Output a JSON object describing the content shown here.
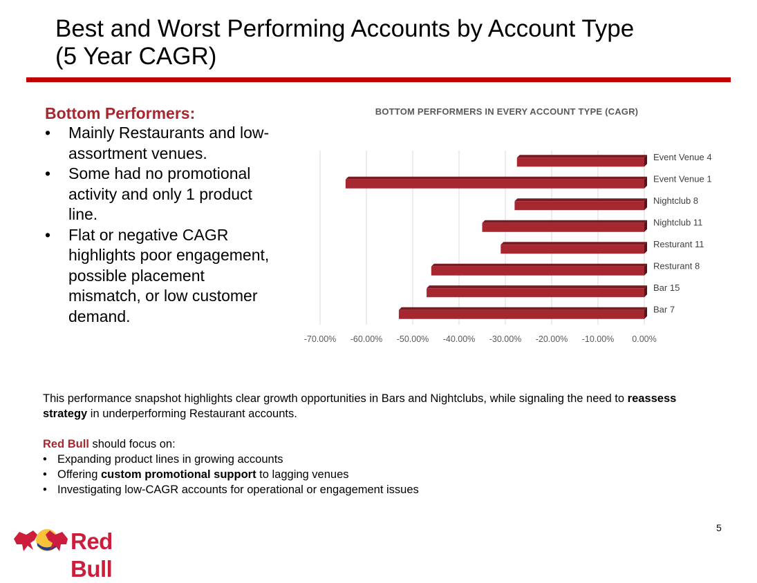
{
  "slide": {
    "title_line1": "Best and Worst Performing Accounts by Account Type",
    "title_line2": "(5 Year CAGR)",
    "page_number": "5"
  },
  "left": {
    "heading": "Bottom Performers:",
    "bullets": [
      "Mainly Restaurants and low-assortment venues.",
      "Some had no promotional activity and only 1 product line.",
      "Flat or negative CAGR highlights poor engagement, possible placement mismatch, or low customer demand."
    ]
  },
  "summary": {
    "p1_pre": "This performance snapshot highlights clear growth opportunities in Bars and Nightclubs, while signaling the need to ",
    "p1_bold": "reassess strategy",
    "p1_post": " in underperforming Restaurant accounts.",
    "focus_brand": "Red Bull",
    "focus_rest": " should focus on:",
    "b1": "Expanding product lines in growing accounts",
    "b2_pre": "Offering ",
    "b2_bold": "custom promotional support",
    "b2_post": " to lagging venues",
    "b3": "Investigating low-CAGR accounts for operational or engagement issues"
  },
  "logo": {
    "text": "Red Bull",
    "icon": "red-bull-logo-icon"
  },
  "colors": {
    "accent": "#c00000",
    "bar": "#a6272f",
    "heading": "#a6272f"
  },
  "chart_data": {
    "type": "bar",
    "orientation": "horizontal",
    "title": "BOTTOM PERFORMERS IN EVERY ACCOUNT TYPE (CAGR)",
    "categories": [
      "Event Venue 4",
      "Event Venue 1",
      "Nightclub 8",
      "Nightclub 11",
      "Resturant 11",
      "Resturant 8",
      "Bar 15",
      "Bar 7"
    ],
    "values": [
      -0.275,
      -0.645,
      -0.28,
      -0.35,
      -0.31,
      -0.46,
      -0.47,
      -0.53
    ],
    "xlim": [
      -0.7,
      0.0
    ],
    "xticks": [
      "-70.00%",
      "-60.00%",
      "-50.00%",
      "-40.00%",
      "-30.00%",
      "-20.00%",
      "-10.00%",
      "0.00%"
    ],
    "grid": true,
    "legend": "none"
  }
}
